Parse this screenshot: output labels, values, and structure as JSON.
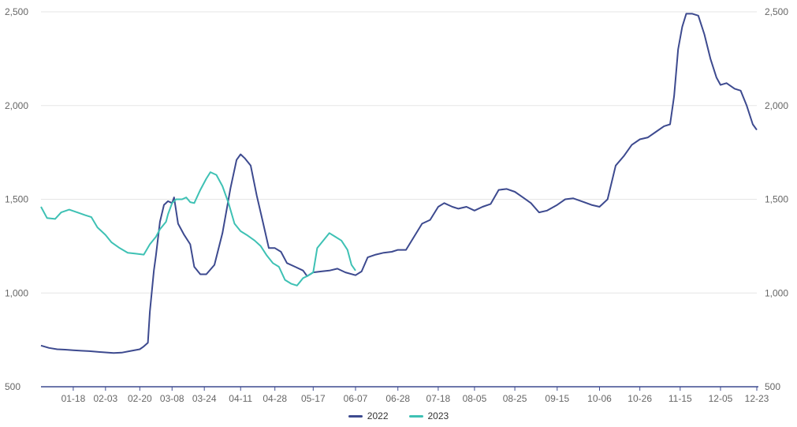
{
  "chart_data": {
    "type": "line",
    "title": "",
    "xlabel": "",
    "ylabel": "",
    "ylim": [
      500,
      2500
    ],
    "yticks": [
      500,
      1000,
      1500,
      2000,
      2500
    ],
    "ytick_labels": [
      "500",
      "1,000",
      "1,500",
      "2,000",
      "2,500"
    ],
    "y_axis_right_mirror": true,
    "grid": "horizontal",
    "legend_position": "bottom-center",
    "x_range": [
      "01-02",
      "12-23"
    ],
    "xtick_labels": [
      "01-18",
      "02-03",
      "02-20",
      "03-08",
      "03-24",
      "04-11",
      "04-28",
      "05-17",
      "06-07",
      "06-28",
      "07-18",
      "08-05",
      "08-25",
      "09-15",
      "10-06",
      "10-26",
      "11-15",
      "12-05",
      "12-23"
    ],
    "series": [
      {
        "name": "2022",
        "color": "#3d4a8f",
        "points": [
          [
            "01-02",
            720
          ],
          [
            "01-06",
            707
          ],
          [
            "01-10",
            700
          ],
          [
            "01-14",
            698
          ],
          [
            "01-18",
            695
          ],
          [
            "01-22",
            692
          ],
          [
            "01-26",
            690
          ],
          [
            "01-30",
            686
          ],
          [
            "02-03",
            683
          ],
          [
            "02-07",
            680
          ],
          [
            "02-11",
            682
          ],
          [
            "02-15",
            690
          ],
          [
            "02-20",
            700
          ],
          [
            "02-22",
            715
          ],
          [
            "02-24",
            735
          ],
          [
            "02-25",
            900
          ],
          [
            "02-27",
            1120
          ],
          [
            "02-28",
            1200
          ],
          [
            "03-02",
            1380
          ],
          [
            "03-04",
            1470
          ],
          [
            "03-06",
            1490
          ],
          [
            "03-08",
            1480
          ],
          [
            "03-09",
            1510
          ],
          [
            "03-11",
            1370
          ],
          [
            "03-14",
            1310
          ],
          [
            "03-17",
            1260
          ],
          [
            "03-19",
            1140
          ],
          [
            "03-22",
            1100
          ],
          [
            "03-25",
            1100
          ],
          [
            "03-29",
            1150
          ],
          [
            "04-02",
            1320
          ],
          [
            "04-06",
            1560
          ],
          [
            "04-09",
            1710
          ],
          [
            "04-11",
            1740
          ],
          [
            "04-13",
            1720
          ],
          [
            "04-16",
            1680
          ],
          [
            "04-19",
            1520
          ],
          [
            "04-22",
            1380
          ],
          [
            "04-25",
            1240
          ],
          [
            "04-28",
            1240
          ],
          [
            "05-01",
            1220
          ],
          [
            "05-04",
            1160
          ],
          [
            "05-08",
            1140
          ],
          [
            "05-12",
            1120
          ],
          [
            "05-14",
            1090
          ],
          [
            "05-17",
            1110
          ],
          [
            "05-21",
            1115
          ],
          [
            "05-25",
            1120
          ],
          [
            "05-29",
            1130
          ],
          [
            "06-02",
            1110
          ],
          [
            "06-07",
            1095
          ],
          [
            "06-10",
            1115
          ],
          [
            "06-13",
            1190
          ],
          [
            "06-17",
            1205
          ],
          [
            "06-21",
            1215
          ],
          [
            "06-25",
            1220
          ],
          [
            "06-28",
            1230
          ],
          [
            "07-02",
            1230
          ],
          [
            "07-06",
            1300
          ],
          [
            "07-10",
            1370
          ],
          [
            "07-14",
            1390
          ],
          [
            "07-18",
            1460
          ],
          [
            "07-21",
            1480
          ],
          [
            "07-25",
            1460
          ],
          [
            "07-28",
            1450
          ],
          [
            "08-01",
            1460
          ],
          [
            "08-05",
            1440
          ],
          [
            "08-09",
            1460
          ],
          [
            "08-13",
            1475
          ],
          [
            "08-17",
            1550
          ],
          [
            "08-21",
            1555
          ],
          [
            "08-25",
            1540
          ],
          [
            "08-29",
            1510
          ],
          [
            "09-02",
            1480
          ],
          [
            "09-06",
            1430
          ],
          [
            "09-10",
            1440
          ],
          [
            "09-15",
            1470
          ],
          [
            "09-19",
            1500
          ],
          [
            "09-23",
            1505
          ],
          [
            "09-27",
            1490
          ],
          [
            "10-02",
            1470
          ],
          [
            "10-06",
            1460
          ],
          [
            "10-10",
            1500
          ],
          [
            "10-14",
            1680
          ],
          [
            "10-18",
            1730
          ],
          [
            "10-22",
            1790
          ],
          [
            "10-26",
            1820
          ],
          [
            "10-30",
            1830
          ],
          [
            "11-03",
            1860
          ],
          [
            "11-07",
            1890
          ],
          [
            "11-10",
            1900
          ],
          [
            "11-12",
            2050
          ],
          [
            "11-14",
            2300
          ],
          [
            "11-16",
            2420
          ],
          [
            "11-18",
            2490
          ],
          [
            "11-21",
            2490
          ],
          [
            "11-24",
            2480
          ],
          [
            "11-27",
            2380
          ],
          [
            "11-30",
            2250
          ],
          [
            "12-03",
            2150
          ],
          [
            "12-05",
            2110
          ],
          [
            "12-08",
            2120
          ],
          [
            "12-12",
            2090
          ],
          [
            "12-15",
            2080
          ],
          [
            "12-18",
            2000
          ],
          [
            "12-21",
            1900
          ],
          [
            "12-23",
            1870
          ]
        ]
      },
      {
        "name": "2023",
        "color": "#3ec1b4",
        "points": [
          [
            "01-02",
            1460
          ],
          [
            "01-05",
            1400
          ],
          [
            "01-09",
            1395
          ],
          [
            "01-12",
            1430
          ],
          [
            "01-16",
            1445
          ],
          [
            "01-20",
            1430
          ],
          [
            "01-24",
            1415
          ],
          [
            "01-27",
            1405
          ],
          [
            "01-30",
            1350
          ],
          [
            "02-03",
            1310
          ],
          [
            "02-06",
            1270
          ],
          [
            "02-10",
            1240
          ],
          [
            "02-14",
            1215
          ],
          [
            "02-18",
            1210
          ],
          [
            "02-22",
            1205
          ],
          [
            "02-25",
            1260
          ],
          [
            "02-28",
            1300
          ],
          [
            "03-02",
            1340
          ],
          [
            "03-05",
            1380
          ],
          [
            "03-06",
            1420
          ],
          [
            "03-08",
            1480
          ],
          [
            "03-10",
            1500
          ],
          [
            "03-13",
            1500
          ],
          [
            "03-15",
            1510
          ],
          [
            "03-17",
            1485
          ],
          [
            "03-19",
            1480
          ],
          [
            "03-22",
            1550
          ],
          [
            "03-25",
            1610
          ],
          [
            "03-27",
            1645
          ],
          [
            "03-30",
            1630
          ],
          [
            "04-02",
            1570
          ],
          [
            "04-05",
            1480
          ],
          [
            "04-08",
            1370
          ],
          [
            "04-11",
            1330
          ],
          [
            "04-14",
            1310
          ],
          [
            "04-18",
            1280
          ],
          [
            "04-21",
            1250
          ],
          [
            "04-24",
            1200
          ],
          [
            "04-27",
            1160
          ],
          [
            "04-30",
            1140
          ],
          [
            "05-03",
            1070
          ],
          [
            "05-06",
            1050
          ],
          [
            "05-09",
            1040
          ],
          [
            "05-12",
            1080
          ],
          [
            "05-14",
            1090
          ],
          [
            "05-17",
            1110
          ],
          [
            "05-19",
            1240
          ],
          [
            "05-22",
            1280
          ],
          [
            "05-25",
            1320
          ],
          [
            "05-28",
            1300
          ],
          [
            "05-31",
            1280
          ],
          [
            "06-03",
            1230
          ],
          [
            "06-05",
            1150
          ],
          [
            "06-07",
            1120
          ]
        ]
      }
    ]
  }
}
